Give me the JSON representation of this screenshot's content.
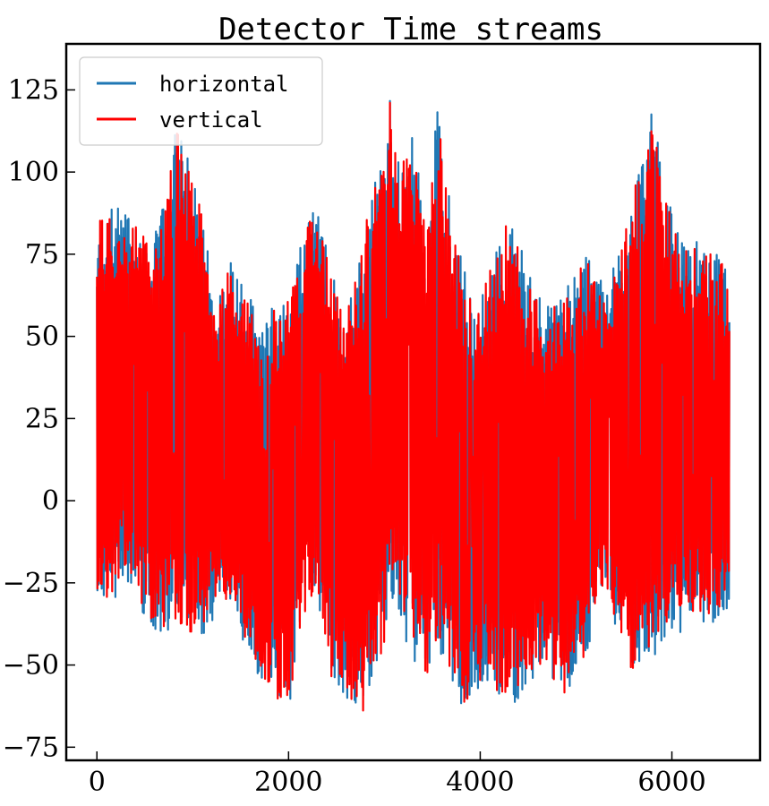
{
  "chart_data": {
    "type": "line",
    "title": "Detector Time streams",
    "xlabel": "",
    "ylabel": "",
    "xlim": [
      -320,
      6920
    ],
    "ylim": [
      -79,
      139
    ],
    "x_ticks": [
      0,
      2000,
      4000,
      6000
    ],
    "x_tick_labels": [
      "0",
      "2000",
      "4000",
      "6000"
    ],
    "y_ticks": [
      -75,
      -50,
      -25,
      0,
      25,
      50,
      75,
      100,
      125
    ],
    "y_tick_labels": [
      "−75",
      "−50",
      "−25",
      "0",
      "25",
      "50",
      "75",
      "100",
      "125"
    ],
    "legend_position": "top-left",
    "grid": false,
    "x_range": [
      0,
      6600
    ],
    "series": [
      {
        "name": "horizontal",
        "color": "#1f77b4",
        "envelope": {
          "x": [
            0,
            150,
            300,
            450,
            600,
            750,
            850,
            950,
            1100,
            1250,
            1400,
            1550,
            1700,
            1850,
            2000,
            2150,
            2300,
            2450,
            2600,
            2750,
            2850,
            3000,
            3060,
            3150,
            3300,
            3450,
            3560,
            3650,
            3800,
            3950,
            4100,
            4250,
            4400,
            4550,
            4700,
            4850,
            5000,
            5150,
            5300,
            5450,
            5600,
            5700,
            5800,
            5950,
            6100,
            6250,
            6400,
            6500,
            6600
          ],
          "upper": [
            80,
            90,
            90,
            85,
            80,
            100,
            121,
            104,
            90,
            60,
            75,
            65,
            55,
            60,
            65,
            83,
            93,
            70,
            58,
            75,
            94,
            105,
            129,
            103,
            112,
            85,
            123,
            97,
            77,
            58,
            72,
            88,
            80,
            66,
            60,
            64,
            70,
            80,
            62,
            78,
            96,
            110,
            119,
            92,
            80,
            80,
            77,
            78,
            65
          ],
          "lower": [
            -27,
            -37,
            -23,
            -33,
            -40,
            -42,
            -40,
            -42,
            -42,
            -35,
            -30,
            -45,
            -55,
            -60,
            -65,
            -40,
            -30,
            -55,
            -60,
            -68,
            -60,
            -45,
            -30,
            -40,
            -50,
            -55,
            -45,
            -50,
            -69,
            -60,
            -56,
            -66,
            -60,
            -55,
            -50,
            -64,
            -53,
            -47,
            -28,
            -45,
            -55,
            -45,
            -50,
            -40,
            -41,
            -37,
            -38,
            -35,
            -32
          ]
        }
      },
      {
        "name": "vertical",
        "color": "#ff0000",
        "envelope": {
          "x": [
            0,
            150,
            300,
            450,
            600,
            750,
            850,
            950,
            1100,
            1250,
            1400,
            1550,
            1700,
            1850,
            2000,
            2150,
            2300,
            2450,
            2600,
            2750,
            2850,
            3000,
            3060,
            3150,
            3300,
            3450,
            3560,
            3650,
            3800,
            3950,
            4100,
            4250,
            4400,
            4550,
            4700,
            4850,
            5000,
            5150,
            5300,
            5450,
            5600,
            5700,
            5800,
            5950,
            6100,
            6250,
            6400,
            6500,
            6600
          ],
          "upper": [
            85,
            89,
            88,
            82,
            78,
            100,
            118,
            101,
            88,
            58,
            75,
            62,
            53,
            58,
            62,
            80,
            92,
            68,
            57,
            73,
            92,
            103,
            123,
            100,
            110,
            82,
            119,
            94,
            74,
            56,
            70,
            86,
            78,
            64,
            58,
            62,
            68,
            78,
            60,
            76,
            94,
            107,
            117,
            90,
            78,
            78,
            75,
            76,
            62
          ],
          "lower": [
            -27,
            -36,
            -21,
            -32,
            -38,
            -40,
            -38,
            -41,
            -40,
            -34,
            -28,
            -43,
            -53,
            -60,
            -62,
            -38,
            -28,
            -54,
            -58,
            -67,
            -58,
            -43,
            -28,
            -38,
            -48,
            -53,
            -43,
            -48,
            -69,
            -58,
            -54,
            -64,
            -58,
            -53,
            -48,
            -62,
            -51,
            -45,
            -26,
            -43,
            -53,
            -43,
            -48,
            -38,
            -39,
            -35,
            -36,
            -33,
            -30
          ]
        }
      }
    ]
  }
}
